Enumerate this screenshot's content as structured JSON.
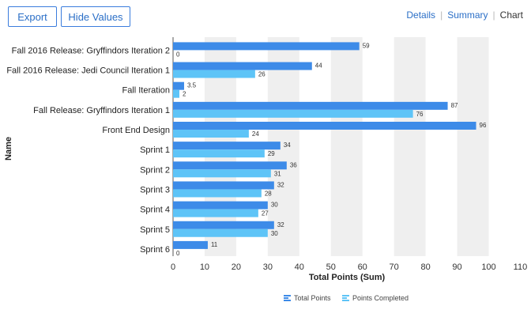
{
  "toolbar": {
    "export_label": "Export",
    "hide_values_label": "Hide Values"
  },
  "views": {
    "items": [
      "Details",
      "Summary",
      "Chart"
    ],
    "active": "Chart"
  },
  "colors": {
    "total_points": "#3d8be8",
    "points_completed": "#5ec4f7",
    "stripe": "#efefef",
    "axis": "#555555"
  },
  "chart_data": {
    "type": "bar",
    "orientation": "horizontal",
    "categories": [
      "Fall 2016 Release: Gryffindors Iteration 2",
      "Fall 2016 Release: Jedi Council Iteration 1",
      "Fall Iteration",
      "Fall Release: Gryffindors Iteration 1",
      "Front End Design",
      "Sprint 1",
      "Sprint 2",
      "Sprint 3",
      "Sprint 4",
      "Sprint 5",
      "Sprint 6"
    ],
    "series": [
      {
        "name": "Total Points",
        "values": [
          59,
          44,
          3.5,
          87,
          96,
          34,
          36,
          32,
          30,
          32,
          11
        ]
      },
      {
        "name": "Points Completed",
        "values": [
          0,
          26,
          2,
          76,
          24,
          29,
          31,
          28,
          27,
          30,
          0
        ]
      }
    ],
    "xlabel": "Total Points (Sum)",
    "ylabel": "Name",
    "xlim": [
      0,
      110
    ],
    "xticks": [
      0,
      10,
      20,
      30,
      40,
      50,
      60,
      70,
      80,
      90,
      100,
      110
    ],
    "grid": "alternating vertical bands",
    "legend_position": "bottom"
  }
}
